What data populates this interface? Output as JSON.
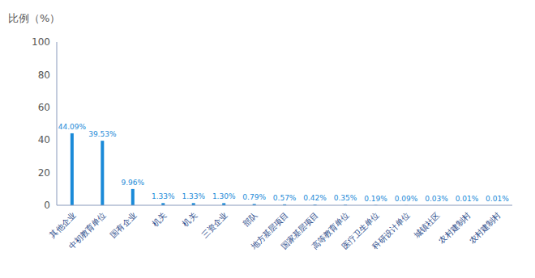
{
  "chart_data": {
    "type": "bar",
    "ylabel": "比例（%）",
    "categories": [
      "其他企业",
      "中初教育单位",
      "国有企业",
      "机关",
      "机关",
      "三资企业",
      "部队",
      "地方基层项目",
      "国家基层项目",
      "高等教育单位",
      "医疗卫生单位",
      "科研设计单位",
      "城镇社区",
      "农村建制村",
      "农村建制村"
    ],
    "values": [
      44.09,
      39.53,
      9.96,
      1.33,
      1.33,
      1.3,
      0.79,
      0.57,
      0.42,
      0.35,
      0.19,
      0.09,
      0.03,
      0.01,
      0.01
    ],
    "value_labels": [
      "44.09%",
      "39.53%",
      "9.96%",
      "1.33%",
      "1.33%",
      "1.30%",
      "0.79%",
      "0.57%",
      "0.42%",
      "0.35%",
      "0.19%",
      "0.09%",
      "0.03%",
      "0.01%",
      "0.01%"
    ],
    "color": "#1a8ad8",
    "ylim": [
      0,
      100
    ],
    "yticks": [
      0,
      20,
      40,
      60,
      80,
      100
    ],
    "grid": false,
    "data_labels": true
  }
}
